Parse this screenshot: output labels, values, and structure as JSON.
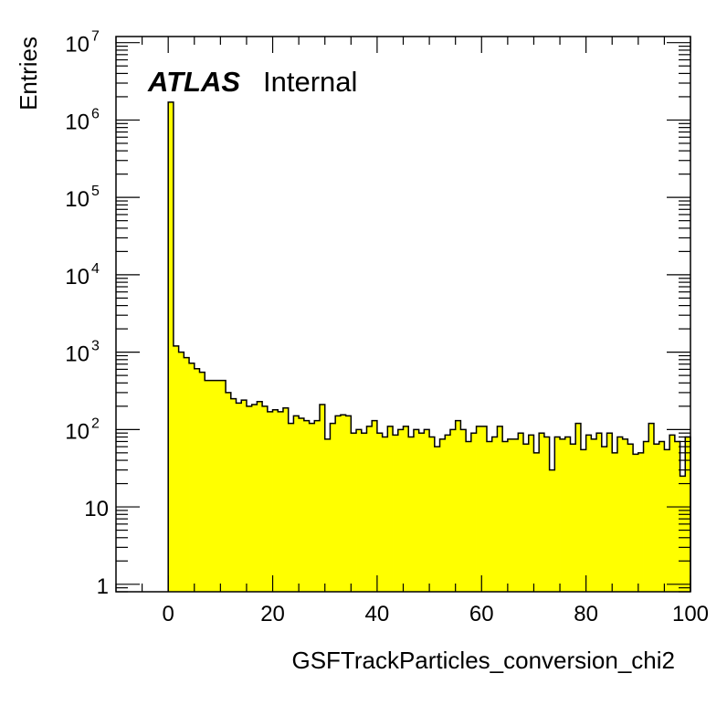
{
  "chart_data": {
    "type": "bar",
    "style": "filled step histogram",
    "fill_color": "#ffff00",
    "line_color": "#000000",
    "xlabel": "GSFTrackParticles_conversion_chi2",
    "ylabel": "Entries",
    "xlim": [
      -10,
      100
    ],
    "ylim": [
      0.8,
      12000000
    ],
    "yscale": "log",
    "grid": false,
    "label_bold": "ATLAS",
    "label_status": "Internal",
    "x_ticks": [
      {
        "value": 0,
        "label": "0"
      },
      {
        "value": 20,
        "label": "20"
      },
      {
        "value": 40,
        "label": "40"
      },
      {
        "value": 60,
        "label": "60"
      },
      {
        "value": 80,
        "label": "80"
      },
      {
        "value": 100,
        "label": "100"
      }
    ],
    "y_ticks": [
      {
        "value": 1,
        "base": "1",
        "exp": ""
      },
      {
        "value": 10,
        "base": "10",
        "exp": ""
      },
      {
        "value": 100,
        "base": "10",
        "exp": "2"
      },
      {
        "value": 1000,
        "base": "10",
        "exp": "3"
      },
      {
        "value": 10000,
        "base": "10",
        "exp": "4"
      },
      {
        "value": 100000,
        "base": "10",
        "exp": "5"
      },
      {
        "value": 1000000,
        "base": "10",
        "exp": "6"
      },
      {
        "value": 10000000,
        "base": "10",
        "exp": "7"
      }
    ],
    "bin_start": 0,
    "bin_width": 1,
    "values": [
      1700000,
      1200,
      1000,
      850,
      720,
      610,
      550,
      430,
      430,
      430,
      430,
      300,
      250,
      220,
      240,
      200,
      210,
      230,
      200,
      170,
      180,
      170,
      190,
      120,
      150,
      140,
      130,
      120,
      130,
      210,
      75,
      120,
      150,
      155,
      150,
      90,
      100,
      90,
      110,
      130,
      90,
      80,
      110,
      85,
      100,
      110,
      80,
      100,
      90,
      100,
      80,
      60,
      75,
      85,
      100,
      130,
      100,
      70,
      90,
      110,
      110,
      70,
      80,
      110,
      70,
      75,
      75,
      90,
      65,
      85,
      50,
      90,
      80,
      30,
      80,
      75,
      80,
      65,
      120,
      55,
      85,
      75,
      90,
      60,
      90,
      50,
      80,
      75,
      65,
      48,
      50,
      70,
      120,
      65,
      70,
      55,
      85,
      70,
      25,
      80
    ]
  }
}
